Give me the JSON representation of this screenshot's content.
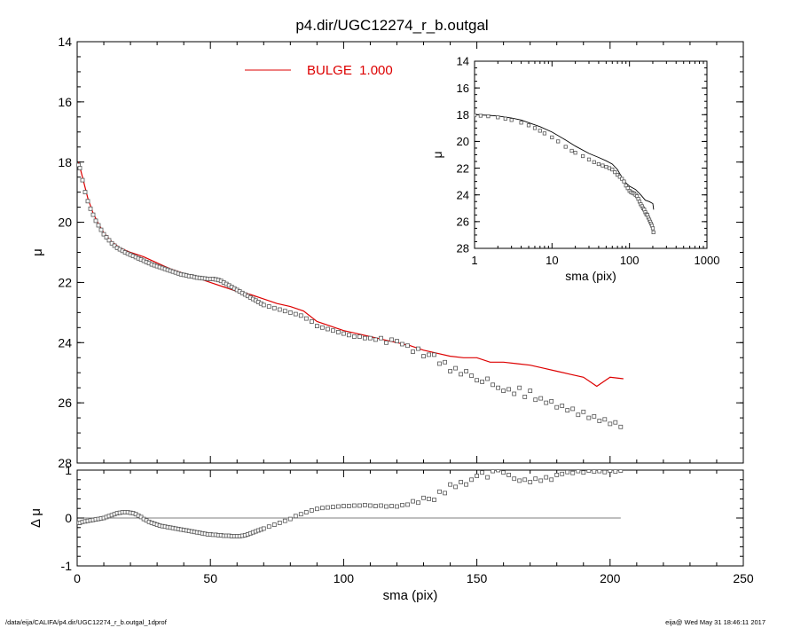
{
  "colors": {
    "model": "#dd0000",
    "obs": "#555555",
    "axis": "#000000"
  },
  "title": "p4.dir/UGC12274_r_b.outgal",
  "legend": {
    "label": "BULGE  1.000"
  },
  "footer": {
    "left": "/data/eija/CALIFA/p4.dir/UGC12274_r_b.outgal_1dprof",
    "right": "eija@  Wed May 31 18:46:11 2017"
  },
  "chart_data": [
    {
      "type": "scatter",
      "panel": "main",
      "title": "p4.dir/UGC12274_r_b.outgal",
      "xlabel": "sma (pix)",
      "ylabel": "μ",
      "xlim": [
        0,
        250
      ],
      "ylim": [
        28,
        14
      ],
      "y_inverted": true,
      "xticks": [
        0,
        50,
        100,
        150,
        200,
        250
      ],
      "yticks": [
        14,
        16,
        18,
        20,
        22,
        24,
        26,
        28
      ],
      "legend": [
        "BULGE  1.000"
      ],
      "legend_position": "top-center",
      "grid": false,
      "series": [
        {
          "name": "BULGE  1.000",
          "kind": "line",
          "x": [
            0.5,
            2,
            4,
            6,
            8,
            10,
            13,
            16,
            20,
            25,
            30,
            35,
            40,
            45,
            50,
            55,
            60,
            65,
            70,
            75,
            80,
            85,
            90,
            95,
            100,
            105,
            110,
            115,
            120,
            125,
            130,
            135,
            140,
            145,
            150,
            155,
            160,
            165,
            170,
            175,
            180,
            185,
            190,
            195,
            200,
            205
          ],
          "y": [
            18.0,
            18.5,
            19.2,
            19.7,
            20.05,
            20.35,
            20.65,
            20.85,
            21.0,
            21.15,
            21.35,
            21.55,
            21.7,
            21.85,
            22.0,
            22.15,
            22.3,
            22.4,
            22.55,
            22.7,
            22.8,
            22.95,
            23.3,
            23.45,
            23.6,
            23.7,
            23.8,
            23.9,
            24.0,
            24.1,
            24.25,
            24.35,
            24.45,
            24.5,
            24.5,
            24.65,
            24.65,
            24.7,
            24.75,
            24.85,
            24.95,
            25.05,
            25.15,
            25.45,
            25.15,
            25.2
          ]
        },
        {
          "name": "",
          "kind": "points",
          "x": [
            0.5,
            1,
            2,
            3,
            4,
            5,
            6,
            7,
            8,
            9,
            10,
            11,
            12,
            13,
            14,
            15,
            16,
            17,
            18,
            19,
            20,
            21,
            22,
            23,
            24,
            25,
            26,
            27,
            28,
            29,
            30,
            31,
            32,
            33,
            34,
            35,
            36,
            37,
            38,
            39,
            40,
            41,
            42,
            43,
            44,
            45,
            46,
            47,
            48,
            49,
            50,
            51,
            52,
            53,
            54,
            55,
            56,
            57,
            58,
            59,
            60,
            61,
            62,
            63,
            64,
            65,
            66,
            67,
            68,
            69,
            70,
            72,
            74,
            76,
            78,
            80,
            82,
            84,
            86,
            88,
            90,
            92,
            94,
            96,
            98,
            100,
            102,
            104,
            106,
            108,
            110,
            112,
            114,
            116,
            118,
            120,
            122,
            124,
            126,
            128,
            130,
            132,
            134,
            136,
            138,
            140,
            142,
            144,
            146,
            148,
            150,
            152,
            154,
            156,
            158,
            160,
            162,
            164,
            166,
            168,
            170,
            172,
            174,
            176,
            178,
            180,
            182,
            184,
            186,
            188,
            190,
            192,
            194,
            196,
            198,
            200,
            202,
            204
          ],
          "y": [
            18.1,
            18.2,
            18.6,
            19.0,
            19.3,
            19.55,
            19.75,
            19.95,
            20.1,
            20.25,
            20.4,
            20.5,
            20.6,
            20.7,
            20.78,
            20.85,
            20.9,
            20.95,
            21.0,
            21.04,
            21.08,
            21.12,
            21.16,
            21.2,
            21.24,
            21.28,
            21.32,
            21.36,
            21.4,
            21.43,
            21.46,
            21.49,
            21.52,
            21.55,
            21.58,
            21.61,
            21.64,
            21.67,
            21.7,
            21.73,
            21.75,
            21.77,
            21.79,
            21.8,
            21.82,
            21.84,
            21.85,
            21.86,
            21.87,
            21.88,
            21.88,
            21.88,
            21.9,
            21.92,
            21.95,
            22.0,
            22.05,
            22.1,
            22.15,
            22.2,
            22.25,
            22.3,
            22.35,
            22.4,
            22.45,
            22.5,
            22.55,
            22.6,
            22.65,
            22.7,
            22.75,
            22.8,
            22.85,
            22.9,
            22.95,
            23.0,
            23.05,
            23.1,
            23.2,
            23.3,
            23.45,
            23.5,
            23.55,
            23.6,
            23.65,
            23.7,
            23.75,
            23.8,
            23.8,
            23.85,
            23.85,
            23.9,
            23.85,
            24.0,
            23.9,
            23.95,
            24.05,
            24.1,
            24.3,
            24.2,
            24.45,
            24.4,
            24.4,
            24.7,
            24.65,
            24.95,
            24.85,
            25.05,
            24.95,
            25.1,
            25.25,
            25.3,
            25.2,
            25.4,
            25.5,
            25.6,
            25.55,
            25.7,
            25.5,
            25.8,
            25.6,
            25.9,
            25.85,
            26.0,
            25.95,
            26.15,
            26.1,
            26.25,
            26.2,
            26.4,
            26.3,
            26.5,
            26.45,
            26.6,
            26.55,
            26.7,
            26.65,
            26.8
          ]
        }
      ]
    },
    {
      "type": "scatter",
      "panel": "inset",
      "xlabel": "sma (pix)",
      "ylabel": "μ",
      "xscale": "log",
      "xlim": [
        1,
        1000
      ],
      "ylim": [
        28,
        14
      ],
      "y_inverted": true,
      "xticks": [
        1,
        10,
        100,
        1000
      ],
      "yticks": [
        14,
        16,
        18,
        20,
        22,
        24,
        26,
        28
      ],
      "grid": false,
      "series": [
        {
          "name": "",
          "kind": "line",
          "x": [
            1,
            1.5,
            2,
            3,
            4,
            5,
            7,
            10,
            15,
            20,
            30,
            40,
            50,
            60,
            70,
            80,
            90,
            100,
            120,
            140,
            160,
            180,
            200,
            205
          ],
          "y": [
            18.0,
            18.05,
            18.1,
            18.25,
            18.4,
            18.6,
            18.9,
            19.3,
            19.9,
            20.35,
            20.9,
            21.2,
            21.45,
            21.7,
            22.1,
            22.7,
            23.1,
            23.35,
            23.6,
            24.0,
            24.4,
            24.5,
            24.65,
            25.1
          ]
        },
        {
          "name": "",
          "kind": "points",
          "x": [
            1,
            1.2,
            1.5,
            2,
            2.5,
            3,
            4,
            5,
            6,
            7,
            8,
            10,
            12,
            15,
            18,
            20,
            25,
            30,
            35,
            40,
            45,
            50,
            55,
            60,
            65,
            70,
            75,
            80,
            85,
            90,
            95,
            100,
            105,
            110,
            115,
            120,
            125,
            130,
            135,
            140,
            145,
            150,
            155,
            160,
            165,
            170,
            175,
            180,
            185,
            190,
            195,
            200,
            204
          ],
          "y": [
            18.05,
            18.08,
            18.12,
            18.2,
            18.3,
            18.4,
            18.6,
            18.8,
            19.0,
            19.2,
            19.4,
            19.7,
            20.0,
            20.4,
            20.7,
            20.85,
            21.1,
            21.35,
            21.55,
            21.7,
            21.8,
            21.9,
            22.0,
            22.1,
            22.3,
            22.5,
            22.65,
            22.8,
            23.0,
            23.3,
            23.5,
            23.7,
            23.8,
            23.85,
            23.9,
            24.0,
            24.1,
            24.3,
            24.5,
            24.7,
            24.85,
            25.0,
            25.1,
            25.3,
            25.45,
            25.5,
            25.7,
            25.85,
            26.0,
            26.15,
            26.3,
            26.5,
            26.8
          ]
        }
      ]
    },
    {
      "type": "scatter",
      "panel": "residual",
      "xlabel": "sma (pix)",
      "ylabel": "Δ μ",
      "xlim": [
        0,
        250
      ],
      "ylim": [
        -1,
        1
      ],
      "xticks": [
        0,
        50,
        100,
        150,
        200,
        250
      ],
      "yticks": [
        -1,
        0,
        1
      ],
      "reference_line": 0,
      "grid": false,
      "series": [
        {
          "name": "",
          "kind": "points",
          "x": [
            0.5,
            1,
            2,
            3,
            4,
            5,
            6,
            7,
            8,
            9,
            10,
            11,
            12,
            13,
            14,
            15,
            16,
            17,
            18,
            19,
            20,
            21,
            22,
            23,
            24,
            25,
            26,
            27,
            28,
            29,
            30,
            31,
            32,
            33,
            34,
            35,
            36,
            37,
            38,
            39,
            40,
            41,
            42,
            43,
            44,
            45,
            46,
            47,
            48,
            49,
            50,
            51,
            52,
            53,
            54,
            55,
            56,
            57,
            58,
            59,
            60,
            61,
            62,
            63,
            64,
            65,
            66,
            67,
            68,
            69,
            70,
            72,
            74,
            76,
            78,
            80,
            82,
            84,
            86,
            88,
            90,
            92,
            94,
            96,
            98,
            100,
            102,
            104,
            106,
            108,
            110,
            112,
            114,
            116,
            118,
            120,
            122,
            124,
            126,
            128,
            130,
            132,
            134,
            136,
            138,
            140,
            142,
            144,
            146,
            148,
            150,
            152,
            154,
            156,
            158,
            160,
            162,
            164,
            166,
            168,
            170,
            172,
            174,
            176,
            178,
            180,
            182,
            184,
            186,
            188,
            190,
            192,
            194,
            196,
            198,
            200,
            202,
            204
          ],
          "y": [
            -0.1,
            -0.1,
            -0.08,
            -0.07,
            -0.06,
            -0.05,
            -0.04,
            -0.03,
            -0.02,
            -0.01,
            0.0,
            0.02,
            0.04,
            0.06,
            0.08,
            0.1,
            0.11,
            0.12,
            0.12,
            0.12,
            0.11,
            0.1,
            0.08,
            0.05,
            0.02,
            -0.02,
            -0.05,
            -0.08,
            -0.1,
            -0.12,
            -0.14,
            -0.16,
            -0.17,
            -0.18,
            -0.19,
            -0.2,
            -0.21,
            -0.22,
            -0.23,
            -0.24,
            -0.25,
            -0.26,
            -0.27,
            -0.28,
            -0.29,
            -0.3,
            -0.31,
            -0.32,
            -0.33,
            -0.34,
            -0.34,
            -0.35,
            -0.35,
            -0.36,
            -0.36,
            -0.37,
            -0.37,
            -0.37,
            -0.38,
            -0.38,
            -0.38,
            -0.38,
            -0.37,
            -0.36,
            -0.34,
            -0.32,
            -0.3,
            -0.28,
            -0.26,
            -0.24,
            -0.22,
            -0.18,
            -0.14,
            -0.1,
            -0.06,
            -0.02,
            0.04,
            0.08,
            0.12,
            0.16,
            0.19,
            0.21,
            0.22,
            0.23,
            0.24,
            0.25,
            0.25,
            0.26,
            0.26,
            0.27,
            0.26,
            0.25,
            0.26,
            0.24,
            0.25,
            0.24,
            0.27,
            0.28,
            0.35,
            0.32,
            0.42,
            0.4,
            0.38,
            0.55,
            0.52,
            0.7,
            0.65,
            0.75,
            0.7,
            0.8,
            0.88,
            0.95,
            0.85,
            0.98,
            1.0,
            0.95,
            0.9,
            0.82,
            0.78,
            0.8,
            0.75,
            0.82,
            0.78,
            0.85,
            0.8,
            0.9,
            0.92,
            0.96,
            0.94,
            0.98,
            0.95,
            0.99,
            0.97,
            0.98,
            0.96,
            0.99,
            0.97,
            0.99
          ]
        }
      ]
    }
  ]
}
